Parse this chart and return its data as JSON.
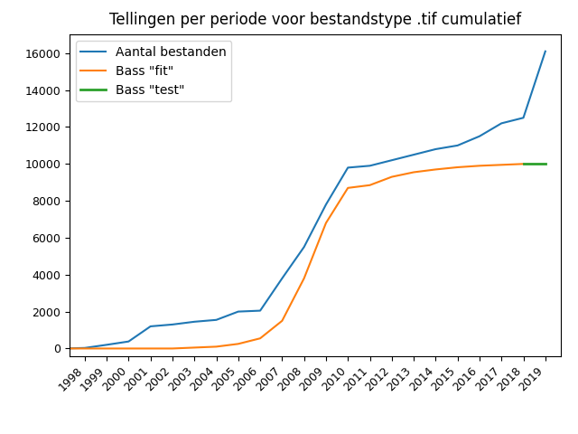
{
  "title": "Tellingen per periode voor bestandstype .tif cumulatief",
  "years_actual": [
    1997,
    1998,
    1999,
    2000,
    2001,
    2002,
    2003,
    2004,
    2005,
    2006,
    2007,
    2008,
    2009,
    2010,
    2011,
    2012,
    2013,
    2014,
    2015,
    2016,
    2017,
    2018,
    2019
  ],
  "values_actual": [
    0,
    30,
    200,
    380,
    1200,
    1300,
    1450,
    1550,
    2000,
    2050,
    3800,
    5500,
    7800,
    9800,
    9900,
    10200,
    10500,
    10800,
    11000,
    11500,
    12200,
    12500,
    16100
  ],
  "years_fit": [
    1997,
    1998,
    1999,
    2000,
    2001,
    2002,
    2003,
    2004,
    2005,
    2006,
    2007,
    2008,
    2009,
    2010,
    2011,
    2012,
    2013,
    2014,
    2015,
    2016,
    2017,
    2018
  ],
  "values_fit": [
    0,
    0,
    0,
    0,
    0,
    0,
    50,
    100,
    250,
    550,
    1500,
    3800,
    6800,
    8700,
    8850,
    9300,
    9550,
    9700,
    9820,
    9900,
    9950,
    10000
  ],
  "years_test": [
    2018,
    2019
  ],
  "values_test": [
    10000,
    10000
  ],
  "color_actual": "#1f77b4",
  "color_fit": "#ff7f0e",
  "color_test": "#2ca02c",
  "label_actual": "Aantal bestanden",
  "label_fit": "Bass \"fit\"",
  "label_test": "Bass \"test\"",
  "ylim": [
    -400,
    17000
  ],
  "yticks": [
    0,
    2000,
    4000,
    6000,
    8000,
    10000,
    12000,
    14000,
    16000
  ],
  "xtick_years": [
    1998,
    1999,
    2000,
    2001,
    2002,
    2003,
    2004,
    2005,
    2006,
    2007,
    2008,
    2009,
    2010,
    2011,
    2012,
    2013,
    2014,
    2015,
    2016,
    2017,
    2018,
    2019
  ],
  "figsize": [
    6.4,
    4.8
  ],
  "dpi": 100,
  "title_fontsize": 12,
  "legend_fontsize": 10,
  "tick_fontsize": 9
}
